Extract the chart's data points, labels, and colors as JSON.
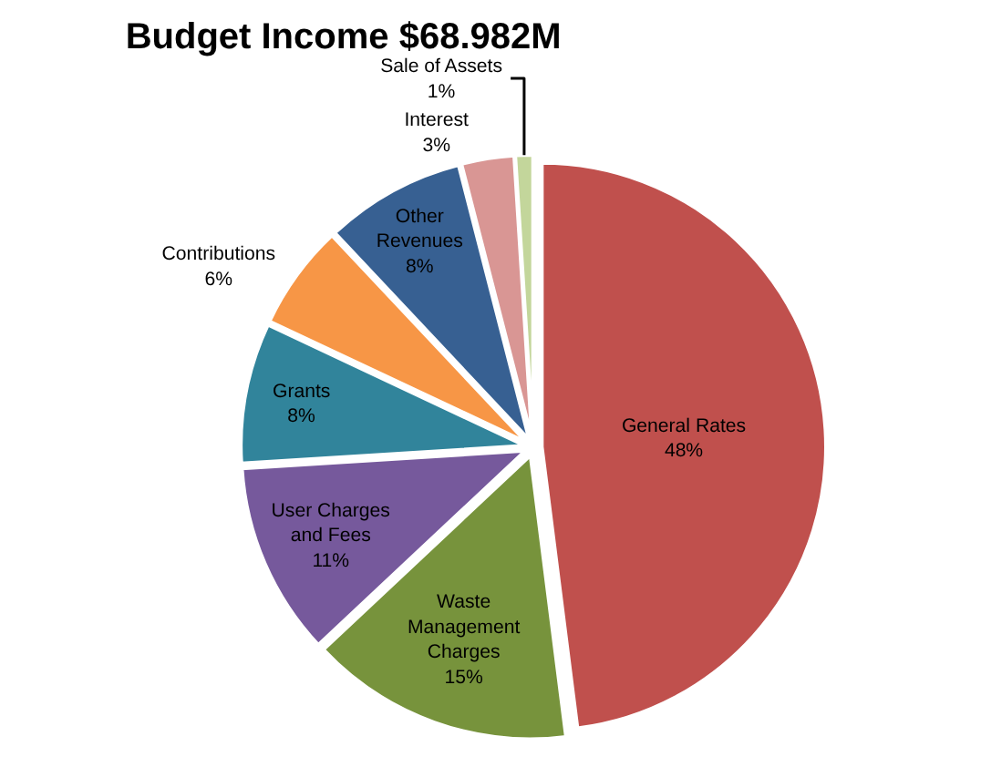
{
  "chart_data": {
    "type": "pie",
    "title": "Budget Income $68.982M",
    "categories": [
      "General Rates",
      "Waste Management Charges",
      "User Charges and Fees",
      "Grants",
      "Contributions",
      "Other Revenues",
      "Interest",
      "Sale of Assets"
    ],
    "values": [
      48,
      15,
      11,
      8,
      6,
      8,
      3,
      1
    ],
    "colors": [
      "#c0504d",
      "#77933c",
      "#76599c",
      "#31849b",
      "#f79646",
      "#376092",
      "#d99694",
      "#c3d69b"
    ],
    "value_labels": [
      "48%",
      "15%",
      "11%",
      "8%",
      "6%",
      "8%",
      "3%",
      "1%"
    ],
    "legend": false
  }
}
